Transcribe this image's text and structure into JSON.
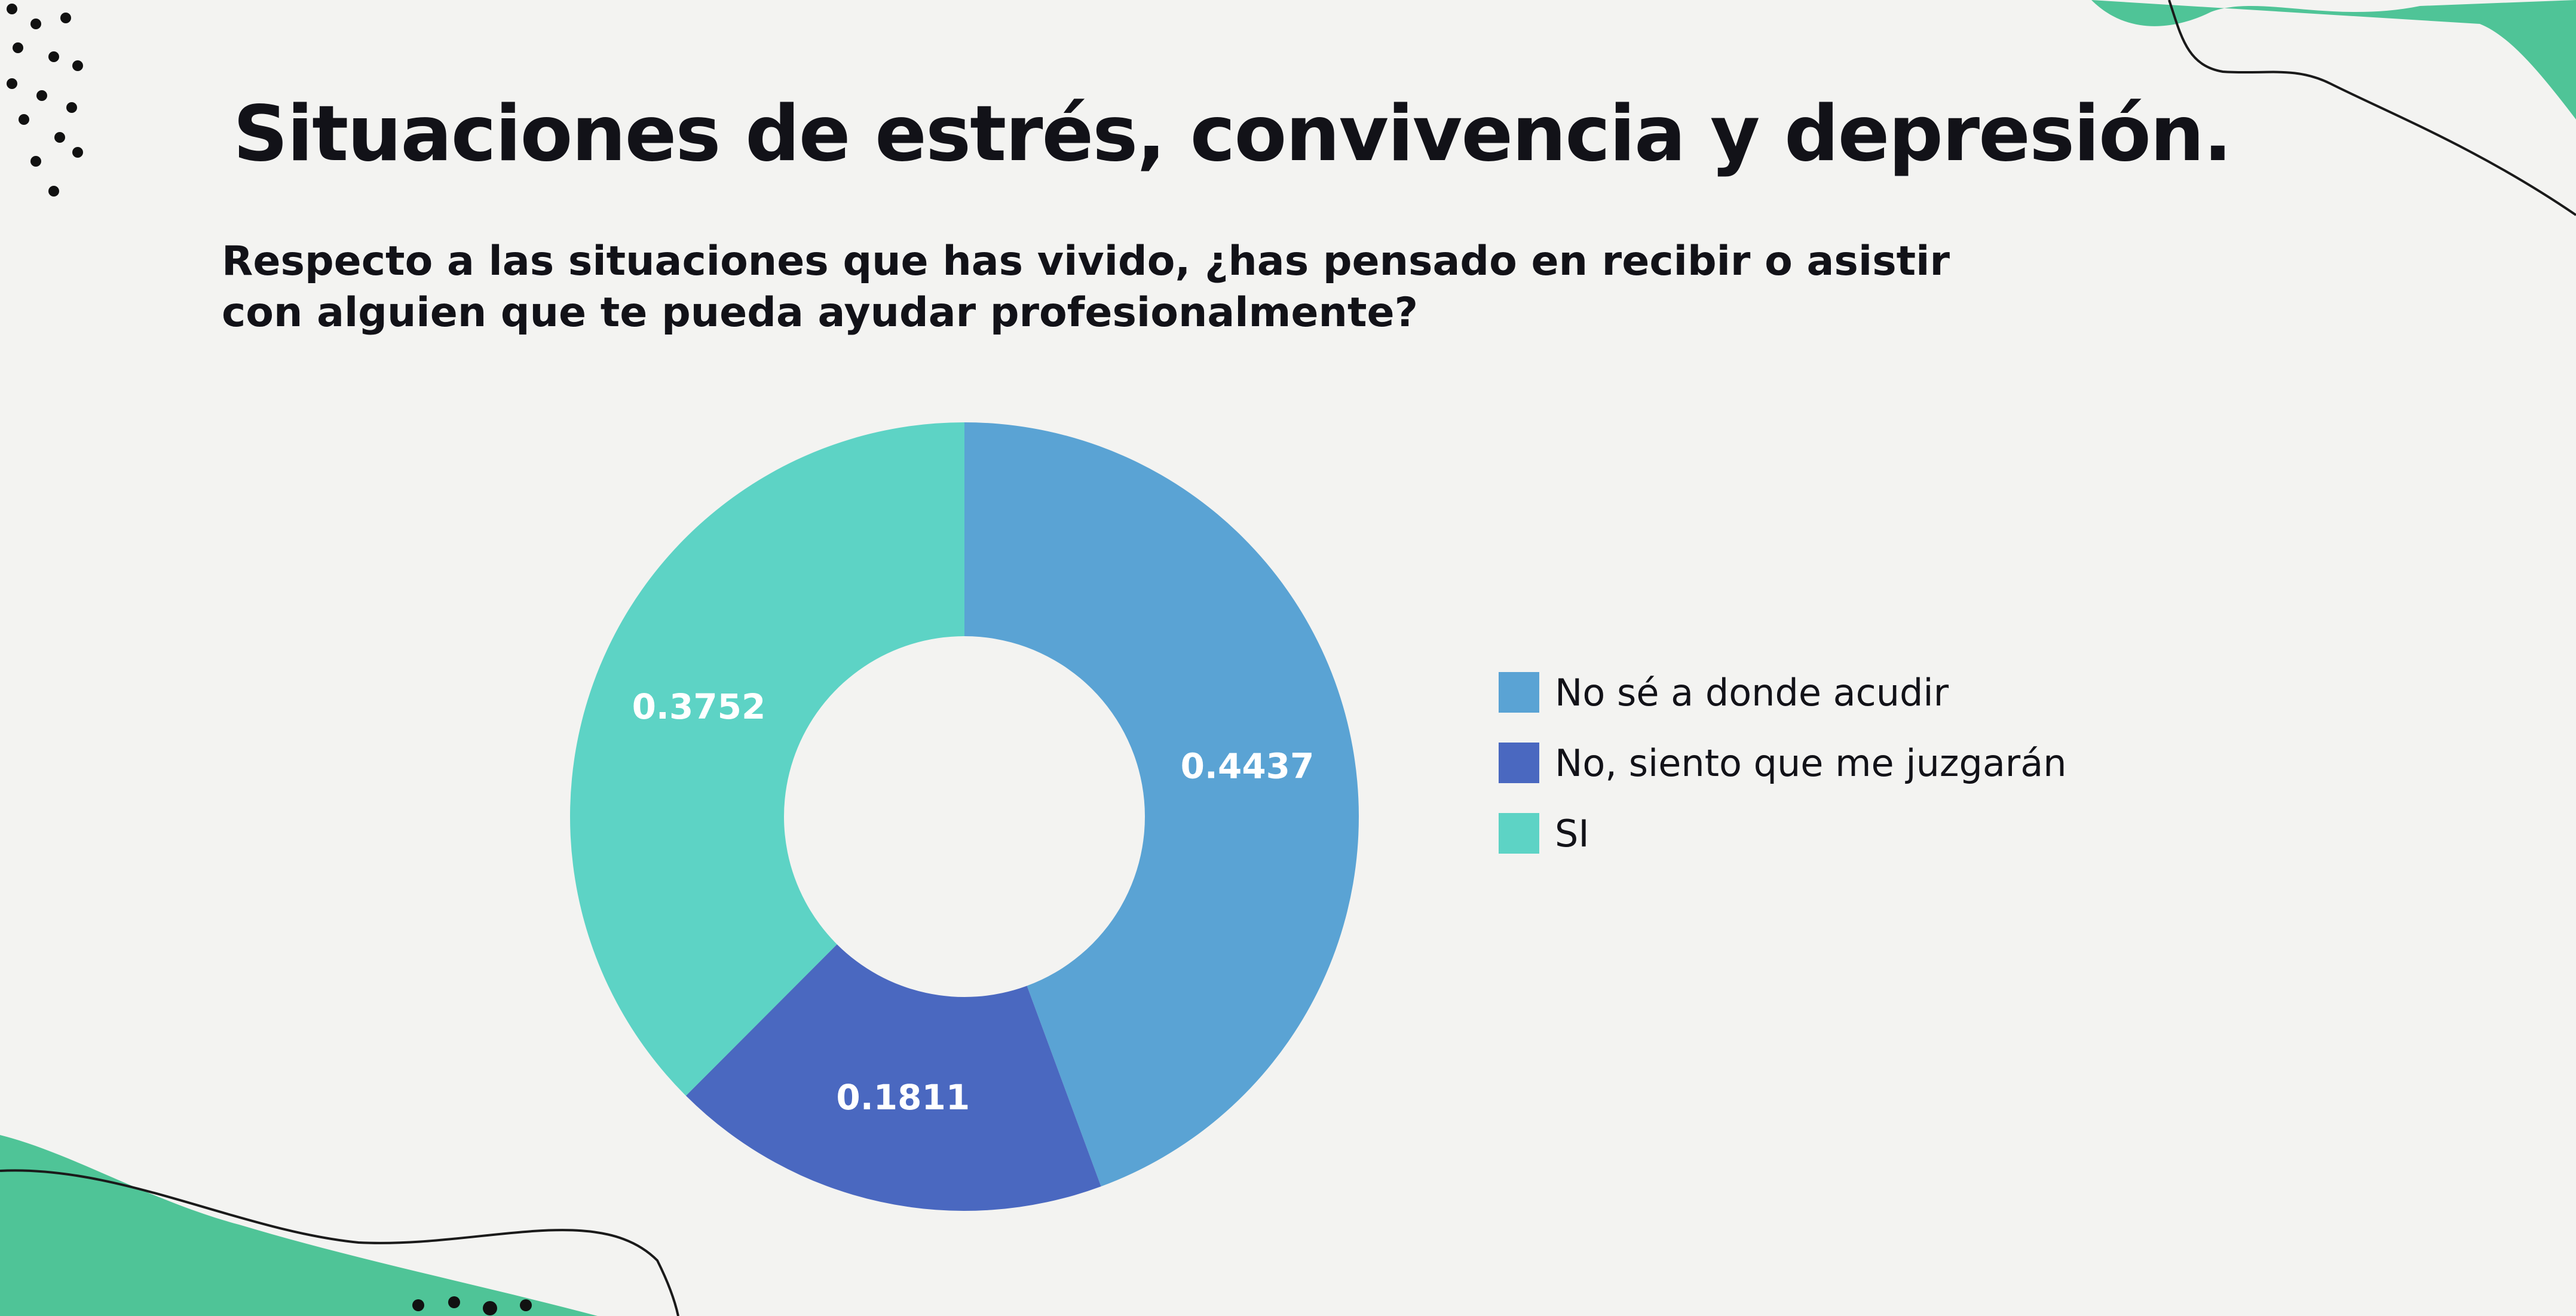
{
  "slide": {
    "title": "Situaciones de estrés, convivencia y depresión.",
    "question": "Respecto a las situaciones que has vivido, ¿has pensado en recibir o asistir con alguien que te pueda ayudar profesionalmente?"
  },
  "colors": {
    "accent_green": "#4fc497",
    "background": "#f3f3f1"
  },
  "chart_data": {
    "type": "pie",
    "variant": "donut",
    "title": "Respecto a las situaciones que has vivido, ¿has pensado en recibir o asistir con alguien que te pueda ayudar profesionalmente?",
    "legend_position": "right",
    "slices": [
      {
        "label": "No sé a donde acudir",
        "value": 0.4437,
        "value_label": "0.4437",
        "color": "#5aa3d4"
      },
      {
        "label": "No, siento que me juzgarán",
        "value": 0.1811,
        "value_label": "0.1811",
        "color": "#4a68c0"
      },
      {
        "label": "SI",
        "value": 0.3752,
        "value_label": "0.3752",
        "color": "#5dd3c5"
      }
    ]
  }
}
